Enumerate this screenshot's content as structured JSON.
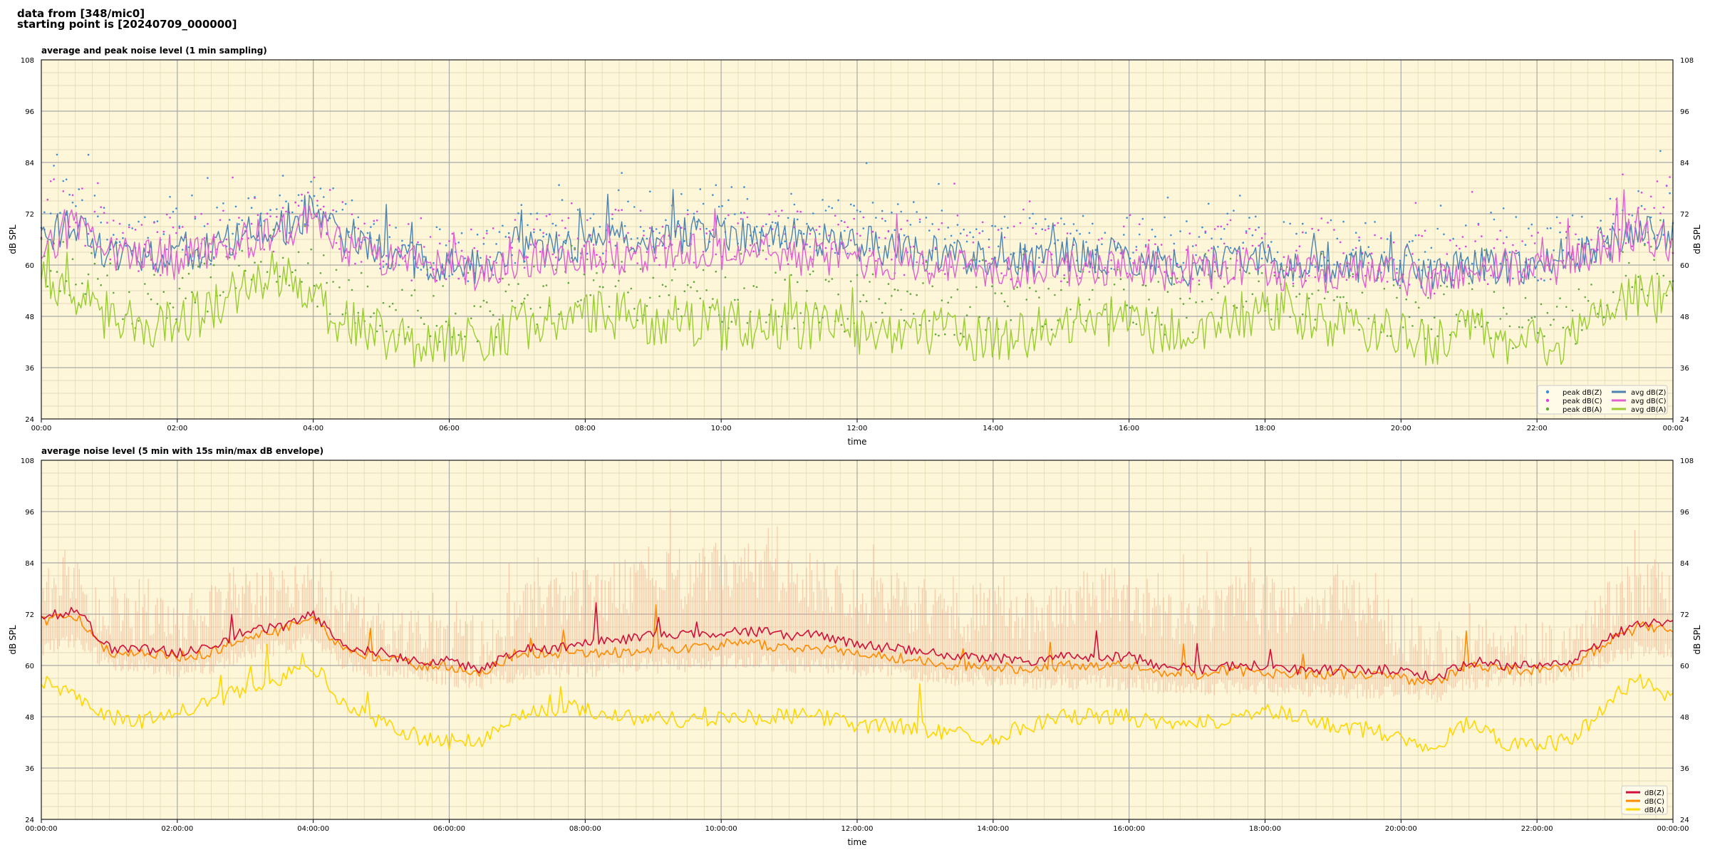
{
  "header": {
    "line1": "data from [348/mic0]",
    "line2": "starting point is [20240709_000000]"
  },
  "colors": {
    "plot_bg": "#fdf6d9",
    "peak_z": "#3a8fd6",
    "peak_c": "#e040e0",
    "peak_a": "#5fa83a",
    "avg_z": "#4a82b0",
    "avg_c": "#e060d0",
    "avg_a": "#9acd32",
    "db_z": "#d0103a",
    "db_c": "#ff8c00",
    "db_a": "#ffd700",
    "envelope": "#f4a582"
  },
  "chart_data": [
    {
      "type": "line",
      "title": "average and peak noise level (1 min sampling)",
      "xlabel": "time",
      "ylabel": "dB SPL",
      "ylim": [
        24,
        108
      ],
      "yticks": [
        "24",
        "36",
        "48",
        "60",
        "72",
        "84",
        "96",
        "108"
      ],
      "xticks": [
        "00:00",
        "02:00",
        "04:00",
        "06:00",
        "08:00",
        "10:00",
        "12:00",
        "14:00",
        "16:00",
        "18:00",
        "20:00",
        "22:00",
        "00:00"
      ],
      "grid": true,
      "legend_position": "lower-right",
      "legend": [
        {
          "label": "peak dB(Z)",
          "marker": "dot",
          "color_key": "peak_z"
        },
        {
          "label": "peak dB(C)",
          "marker": "dot",
          "color_key": "peak_c"
        },
        {
          "label": "peak dB(A)",
          "marker": "dot",
          "color_key": "peak_a"
        },
        {
          "label": "avg dB(Z)",
          "marker": "line",
          "color_key": "avg_z"
        },
        {
          "label": "avg dB(C)",
          "marker": "line",
          "color_key": "avg_c"
        },
        {
          "label": "avg dB(A)",
          "marker": "line",
          "color_key": "avg_a"
        }
      ],
      "x": [
        0,
        0.5,
        1,
        1.5,
        2,
        2.5,
        3,
        3.5,
        4,
        4.5,
        5,
        5.5,
        6,
        6.5,
        7,
        7.5,
        8,
        8.5,
        9,
        9.5,
        10,
        10.5,
        11,
        11.5,
        12,
        12.5,
        13,
        13.5,
        14,
        14.5,
        15,
        15.5,
        16,
        16.5,
        17,
        17.5,
        18,
        18.5,
        19,
        19.5,
        20,
        20.5,
        21,
        21.5,
        22,
        22.5,
        23,
        23.5,
        24
      ],
      "series": [
        {
          "name": "avg dB(Z)",
          "color_key": "avg_z",
          "values": [
            66,
            70,
            63,
            63,
            62,
            64,
            67,
            68,
            73,
            65,
            63,
            61,
            60,
            59,
            63,
            64,
            65,
            66,
            67,
            67,
            68,
            67,
            66,
            66,
            65,
            64,
            63,
            62,
            62,
            61,
            62,
            62,
            62,
            60,
            59,
            62,
            61,
            60,
            60,
            60,
            59,
            58,
            60,
            60,
            60,
            61,
            65,
            68,
            66
          ]
        },
        {
          "name": "avg dB(C)",
          "color_key": "avg_c",
          "values": [
            64,
            69,
            62,
            62,
            61,
            63,
            66,
            67,
            71,
            63,
            62,
            60,
            59,
            58,
            61,
            62,
            62,
            62,
            63,
            63,
            63,
            63,
            62,
            62,
            61,
            61,
            60,
            60,
            59,
            59,
            59,
            59,
            60,
            58,
            58,
            60,
            59,
            58,
            58,
            58,
            57,
            56,
            59,
            59,
            59,
            60,
            64,
            67,
            65
          ]
        },
        {
          "name": "avg dB(A)",
          "color_key": "avg_a",
          "values": [
            55,
            52,
            48,
            45,
            47,
            50,
            55,
            58,
            52,
            46,
            44,
            42,
            43,
            42,
            46,
            47,
            48,
            48,
            47,
            47,
            46,
            46,
            46,
            46,
            45,
            45,
            44,
            44,
            43,
            44,
            46,
            47,
            47,
            44,
            44,
            48,
            48,
            48,
            46,
            45,
            43,
            42,
            46,
            41,
            42,
            42,
            50,
            54,
            50
          ]
        },
        {
          "name": "peak dB(Z)",
          "color_key": "peak_z",
          "values": [
            70,
            75,
            66,
            66,
            65,
            67,
            71,
            71,
            76,
            69,
            66,
            64,
            63,
            62,
            67,
            68,
            69,
            70,
            71,
            71,
            72,
            71,
            70,
            70,
            69,
            68,
            67,
            66,
            66,
            65,
            66,
            66,
            66,
            64,
            63,
            66,
            65,
            64,
            64,
            64,
            63,
            62,
            64,
            63,
            63,
            64,
            68,
            72,
            70
          ]
        },
        {
          "name": "peak dB(C)",
          "color_key": "peak_c",
          "values": [
            68,
            73,
            65,
            65,
            64,
            66,
            70,
            70,
            75,
            67,
            65,
            63,
            62,
            61,
            65,
            66,
            66,
            66,
            67,
            67,
            67,
            67,
            66,
            66,
            65,
            65,
            64,
            64,
            63,
            63,
            63,
            63,
            64,
            62,
            62,
            64,
            63,
            62,
            62,
            62,
            61,
            60,
            63,
            62,
            62,
            63,
            67,
            71,
            69
          ]
        },
        {
          "name": "peak dB(A)",
          "color_key": "peak_a",
          "values": [
            60,
            58,
            54,
            51,
            53,
            56,
            60,
            62,
            58,
            52,
            50,
            48,
            49,
            48,
            52,
            53,
            54,
            54,
            53,
            53,
            52,
            52,
            52,
            52,
            51,
            51,
            50,
            50,
            49,
            50,
            52,
            53,
            53,
            50,
            50,
            54,
            54,
            54,
            52,
            51,
            49,
            48,
            52,
            46,
            47,
            47,
            55,
            59,
            55
          ]
        }
      ]
    },
    {
      "type": "line",
      "title": "average noise level (5 min with 15s min/max dB envelope)",
      "xlabel": "time",
      "ylabel": "dB SPL",
      "ylim": [
        24,
        108
      ],
      "yticks": [
        "24",
        "36",
        "48",
        "60",
        "72",
        "84",
        "96",
        "108"
      ],
      "xticks": [
        "00:00:00",
        "02:00:00",
        "04:00:00",
        "06:00:00",
        "08:00:00",
        "10:00:00",
        "12:00:00",
        "14:00:00",
        "16:00:00",
        "18:00:00",
        "20:00:00",
        "22:00:00",
        "00:00:00"
      ],
      "grid": true,
      "legend_position": "lower-right",
      "legend": [
        {
          "label": "dB(Z)",
          "marker": "line",
          "color_key": "db_z"
        },
        {
          "label": "dB(C)",
          "marker": "line",
          "color_key": "db_c"
        },
        {
          "label": "dB(A)",
          "marker": "line",
          "color_key": "db_a"
        }
      ],
      "x": [
        0,
        0.5,
        1,
        1.5,
        2,
        2.5,
        3,
        3.5,
        4,
        4.5,
        5,
        5.5,
        6,
        6.5,
        7,
        7.5,
        8,
        8.5,
        9,
        9.5,
        10,
        10.5,
        11,
        11.5,
        12,
        12.5,
        13,
        13.5,
        14,
        14.5,
        15,
        15.5,
        16,
        16.5,
        17,
        17.5,
        18,
        18.5,
        19,
        19.5,
        20,
        20.5,
        21,
        21.5,
        22,
        22.5,
        23,
        23.5,
        24
      ],
      "series": [
        {
          "name": "dB(Z)",
          "color_key": "db_z",
          "values": [
            71,
            73,
            64,
            64,
            63,
            64,
            68,
            69,
            72,
            64,
            63,
            61,
            61,
            59,
            64,
            64,
            65,
            66,
            67,
            67,
            68,
            68,
            67,
            67,
            65,
            64,
            63,
            62,
            62,
            61,
            62,
            62,
            62,
            60,
            59,
            60,
            60,
            59,
            59,
            59,
            59,
            57,
            61,
            60,
            60,
            61,
            66,
            70,
            70
          ]
        },
        {
          "name": "dB(C)",
          "color_key": "db_c",
          "values": [
            70,
            72,
            63,
            63,
            62,
            63,
            67,
            68,
            71,
            63,
            62,
            60,
            60,
            58,
            63,
            63,
            63,
            63,
            64,
            64,
            65,
            65,
            64,
            64,
            63,
            62,
            61,
            60,
            60,
            59,
            60,
            60,
            60,
            58,
            58,
            59,
            58,
            58,
            58,
            58,
            57,
            56,
            60,
            59,
            59,
            60,
            65,
            69,
            69
          ]
        },
        {
          "name": "dB(A)",
          "color_key": "db_a",
          "values": [
            57,
            52,
            48,
            47,
            49,
            51,
            55,
            57,
            60,
            50,
            47,
            43,
            42,
            43,
            48,
            50,
            50,
            48,
            48,
            47,
            48,
            48,
            48,
            48,
            46,
            46,
            45,
            44,
            43,
            46,
            48,
            48,
            48,
            46,
            46,
            48,
            49,
            48,
            46,
            45,
            43,
            41,
            47,
            42,
            42,
            42,
            51,
            57,
            52
          ]
        },
        {
          "name": "max envelope",
          "color_key": "envelope",
          "values": [
            76,
            80,
            70,
            70,
            69,
            72,
            75,
            76,
            80,
            71,
            69,
            66,
            66,
            63,
            72,
            74,
            76,
            78,
            80,
            80,
            82,
            82,
            80,
            79,
            77,
            75,
            74,
            72,
            72,
            70,
            74,
            76,
            76,
            71,
            70,
            74,
            74,
            73,
            75,
            72,
            68,
            64,
            68,
            63,
            63,
            64,
            73,
            78,
            78
          ]
        },
        {
          "name": "min envelope",
          "color_key": "envelope",
          "values": [
            64,
            66,
            60,
            60,
            59,
            60,
            63,
            64,
            67,
            60,
            59,
            58,
            57,
            56,
            58,
            59,
            59,
            60,
            60,
            60,
            61,
            61,
            60,
            60,
            59,
            59,
            58,
            57,
            57,
            56,
            56,
            56,
            56,
            55,
            55,
            55,
            55,
            54,
            54,
            54,
            54,
            53,
            56,
            57,
            57,
            58,
            61,
            64,
            63
          ]
        }
      ]
    }
  ]
}
